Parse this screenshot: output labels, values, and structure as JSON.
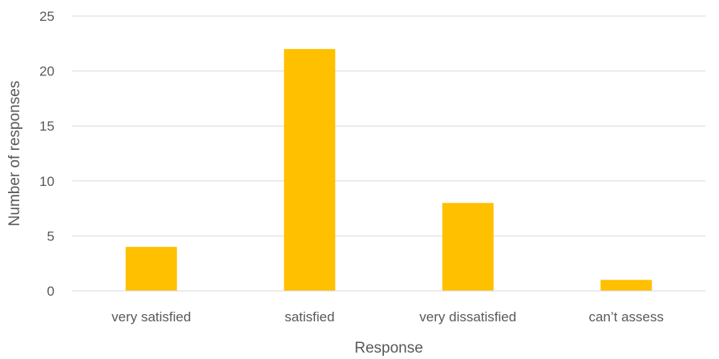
{
  "chart_data": {
    "type": "bar",
    "categories": [
      "very satisfied",
      "satisfied",
      "very dissatisfied",
      "can’t assess"
    ],
    "values": [
      4,
      22,
      8,
      1
    ],
    "title": "",
    "xlabel": "Response",
    "ylabel": "Number of responses",
    "ylim": [
      0,
      25
    ],
    "yticks": [
      0,
      5,
      10,
      15,
      20,
      25
    ],
    "grid": true,
    "bar_color": "#ffc000"
  }
}
